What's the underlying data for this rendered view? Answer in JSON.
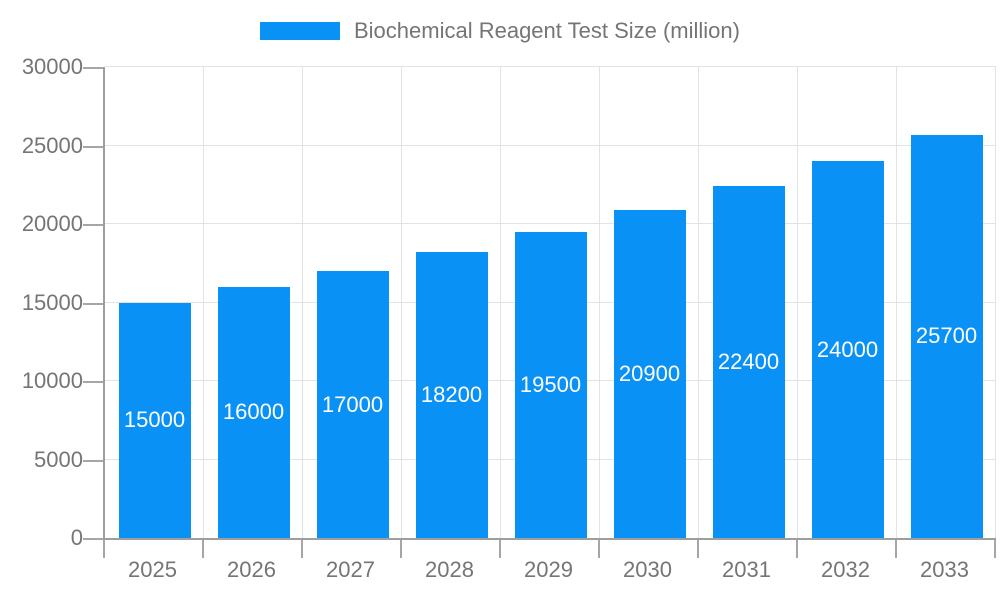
{
  "legend": {
    "label": "Biochemical Reagent Test Size (million)"
  },
  "chart_data": {
    "type": "bar",
    "title": "Biochemical Reagent Test Size (million)",
    "categories": [
      "2025",
      "2026",
      "2027",
      "2028",
      "2029",
      "2030",
      "2031",
      "2032",
      "2033"
    ],
    "values": [
      15000,
      16000,
      17000,
      18200,
      19500,
      20900,
      22400,
      24000,
      25700
    ],
    "xlabel": "",
    "ylabel": "",
    "ylim": [
      0,
      30000
    ],
    "yticks": [
      0,
      5000,
      10000,
      15000,
      20000,
      25000,
      30000
    ],
    "grid": true,
    "legend_position": "top",
    "colors": {
      "bar": "#0a91f5",
      "value_label": "#ffffff",
      "axis_line": "#9e9e9e",
      "grid_line": "#e3e3e3",
      "tick_text": "#757575"
    }
  }
}
